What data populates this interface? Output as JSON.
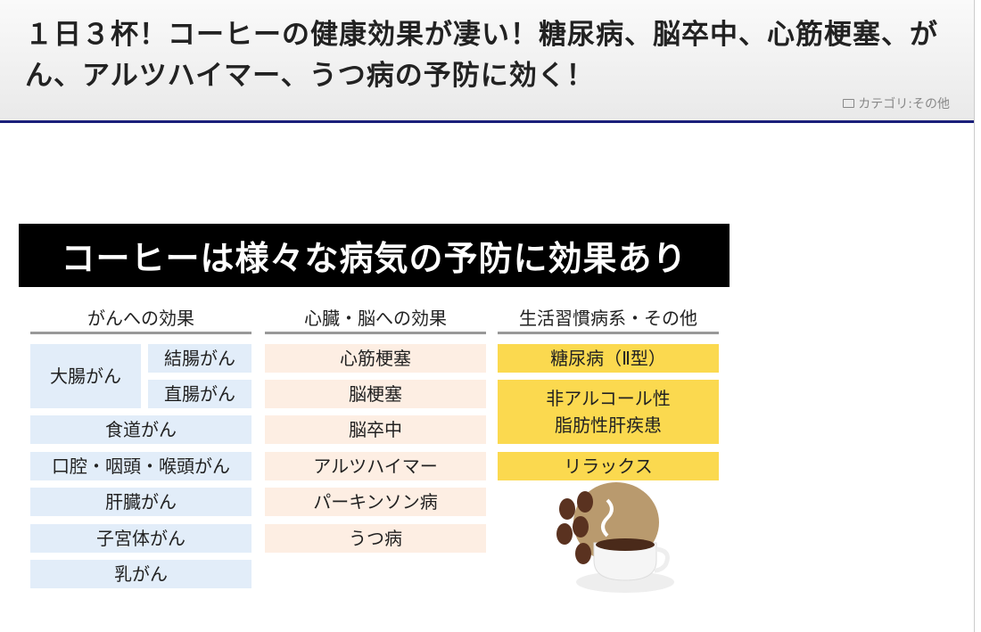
{
  "header": {
    "title": "１日３杯！コーヒーの健康効果が凄い！糖尿病、脳卒中、心筋梗塞、がん、アルツハイマー、うつ病の予防に効く！",
    "category": "カテゴリ:その他",
    "category_icon": "folder-icon"
  },
  "image": {
    "banner": "コーヒーは様々な病気の予防に効果あり",
    "columns": [
      {
        "heading": "がんへの効果",
        "group": "大腸がん",
        "sub": [
          "結腸がん",
          "直腸がん"
        ],
        "items": [
          "食道がん",
          "口腔・咽頭・喉頭がん",
          "肝臓がん",
          "子宮体がん",
          "乳がん"
        ]
      },
      {
        "heading": "心臓・脳への効果",
        "items": [
          "心筋梗塞",
          "脳梗塞",
          "脳卒中",
          "アルツハイマー",
          "パーキンソン病",
          "うつ病"
        ]
      },
      {
        "heading": "生活習慣病系・その他",
        "items": [
          "糖尿病（Ⅱ型）",
          "非アルコール性\n脂肪性肝疾患",
          "リラックス"
        ]
      }
    ],
    "colors": {
      "cancer": "#e2edf9",
      "heart": "#fdeee3",
      "lifestyle": "#fbd94f"
    }
  }
}
